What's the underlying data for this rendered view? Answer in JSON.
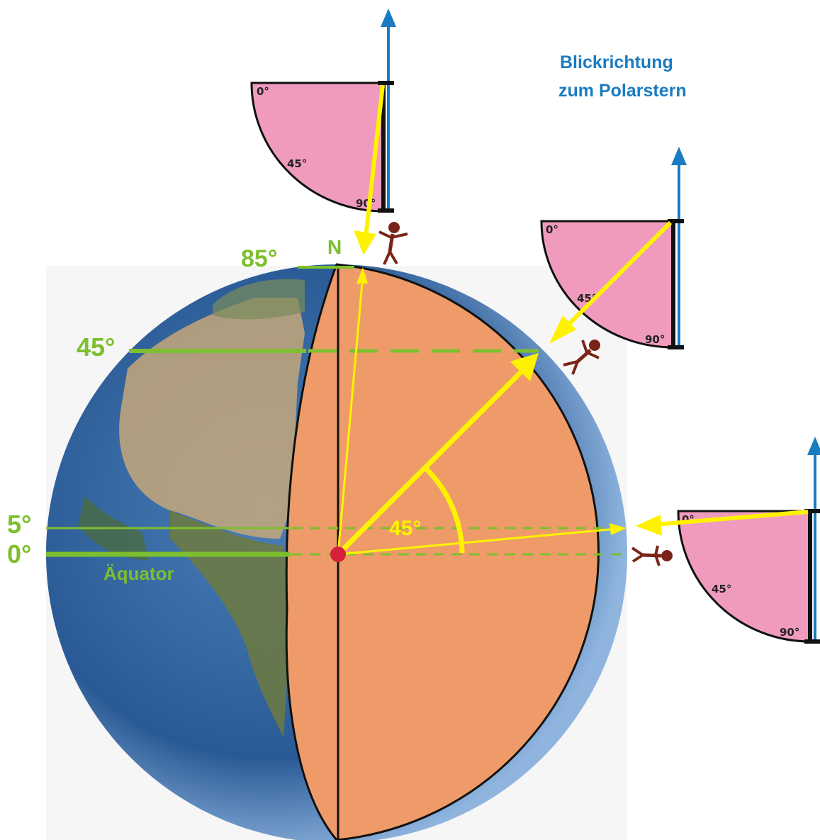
{
  "title_lines": [
    "Blickrichtung",
    "zum Polarstern"
  ],
  "north_label": "N",
  "latitudes": [
    {
      "label": "85°",
      "value": 85
    },
    {
      "label": "45°",
      "value": 45
    },
    {
      "label": "5°",
      "value": 5
    },
    {
      "label": "0°",
      "value": 0
    }
  ],
  "equator_label": "Äquator",
  "angle_label": "45°",
  "quadrants": [
    {
      "id": "q85",
      "label_0": "0°",
      "label_45": "45°",
      "label_90": "90°"
    },
    {
      "id": "q45",
      "label_0": "0°",
      "label_45": "45°",
      "label_90": "90°"
    },
    {
      "id": "q5",
      "label_0": "0°",
      "label_45": "45°",
      "label_90": "90°"
    }
  ],
  "colors": {
    "green": "#7dbf2e",
    "yellow": "#fff200",
    "blue": "#1a7cc0",
    "pink": "#f09bbd",
    "orange": "#ee9b69",
    "person": "#7a2418",
    "center_dot": "#d4203a"
  }
}
